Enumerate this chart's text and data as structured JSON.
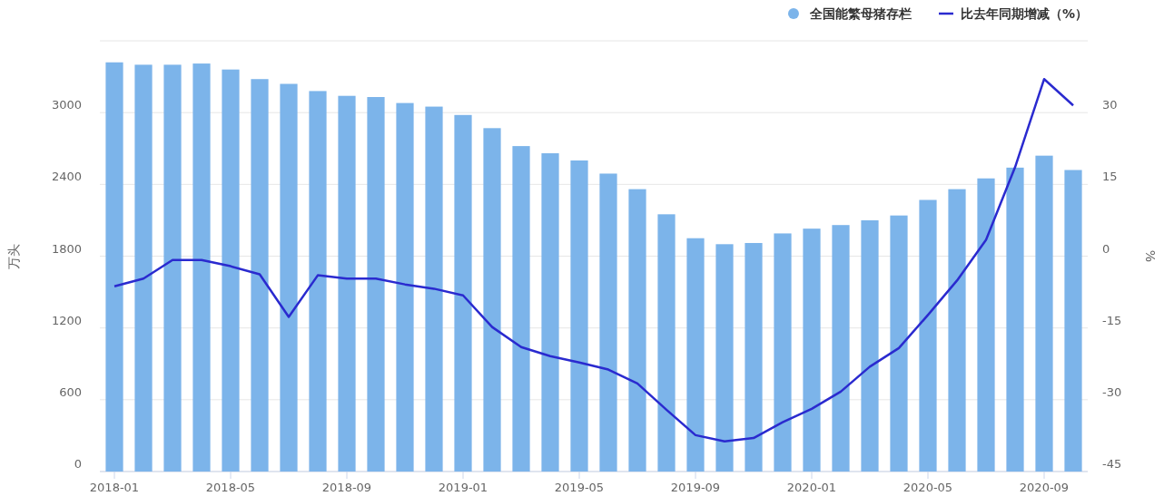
{
  "chart_data": {
    "type": "bar",
    "ylabel": "万头",
    "y2label": "%",
    "categories": [
      "2018-01",
      null,
      null,
      null,
      "2018-05",
      null,
      null,
      null,
      "2018-09",
      null,
      null,
      null,
      "2019-01",
      null,
      null,
      null,
      "2019-05",
      null,
      null,
      null,
      "2019-09",
      null,
      null,
      null,
      "2020-01",
      null,
      null,
      null,
      "2020-05",
      null,
      null,
      null,
      "2020-09",
      null
    ],
    "series": [
      {
        "name": "全国能繁母猪存栏",
        "color": "#7cb4ea",
        "values": [
          3420,
          3400,
          3400,
          3410,
          3360,
          3280,
          3240,
          3180,
          3140,
          3130,
          3080,
          3050,
          2980,
          2870,
          2720,
          2660,
          2600,
          2490,
          2360,
          2150,
          1950,
          1900,
          1910,
          1990,
          2030,
          2060,
          2100,
          2140,
          2270,
          2360,
          2450,
          2540,
          2640,
          2520
        ]
      },
      {
        "name": "比去年同期增减（%）",
        "type": "line",
        "axis": "y2",
        "color": "#2a2acf",
        "values": [
          -6.3,
          -4.7,
          -0.8,
          -0.8,
          -2.1,
          -3.8,
          -12.7,
          -4.0,
          -4.7,
          -4.7,
          -5.9,
          -6.8,
          -8.2,
          -14.8,
          -19.0,
          -20.9,
          -22.2,
          -23.7,
          -26.6,
          -32.1,
          -37.4,
          -38.7,
          -38.0,
          -34.7,
          -31.9,
          -28.3,
          -23.1,
          -19.2,
          -12.3,
          -5.1,
          3.4,
          18.6,
          37.0,
          31.5
        ]
      }
    ],
    "ylim": [
      0,
      3600
    ],
    "yticks": [
      0,
      600,
      1200,
      1800,
      2400,
      3000,
      {
        "value": 3600,
        "label": null
      }
    ],
    "y2lim": [
      -45,
      45
    ],
    "y2ticks": [
      -45,
      -30,
      -15,
      0,
      15,
      30
    ],
    "grid": "y",
    "legend": "top right"
  }
}
